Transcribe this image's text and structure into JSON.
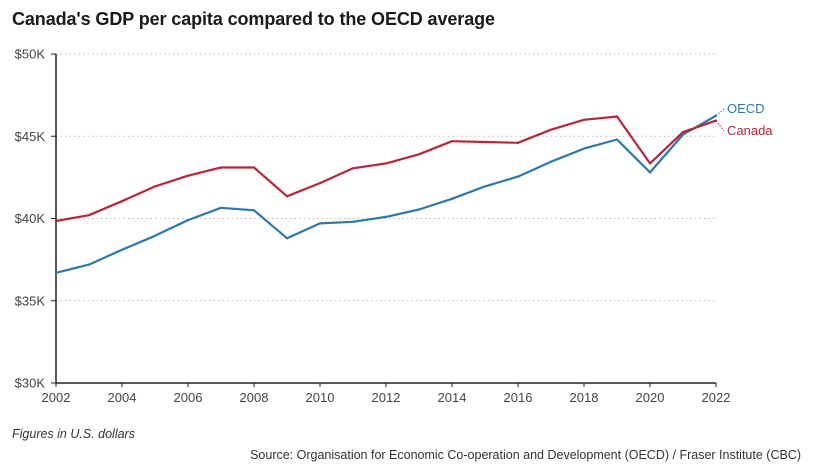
{
  "title": "Canada's GDP per capita compared to the OECD average",
  "note": "Figures in U.S. dollars",
  "source": "Source: Organisation for Economic Co-operation and Development (OECD) / Fraser Institute (CBC)",
  "colors": {
    "oecd": "#2e78a8",
    "canada": "#b5283a",
    "grid": "#bbbbbb",
    "axis": "#222222"
  },
  "chart_data": {
    "type": "line",
    "title": "Canada's GDP per capita compared to the OECD average",
    "xlabel": "",
    "ylabel": "",
    "xlim": [
      2002,
      2022
    ],
    "ylim": [
      30000,
      50000
    ],
    "x_ticks": [
      2002,
      2004,
      2006,
      2008,
      2010,
      2012,
      2014,
      2016,
      2018,
      2020,
      2022
    ],
    "x_tick_labels": [
      "2002",
      "2004",
      "2006",
      "2008",
      "2010",
      "2012",
      "2014",
      "2016",
      "2018",
      "2020",
      "2022"
    ],
    "y_ticks": [
      30000,
      35000,
      40000,
      45000,
      50000
    ],
    "y_tick_labels": [
      "$30K",
      "$35K",
      "$40K",
      "$45K",
      "$50K"
    ],
    "grid": "horizontal-dotted",
    "legend": "direct-labels-right",
    "x": [
      2002,
      2003,
      2004,
      2005,
      2006,
      2007,
      2008,
      2009,
      2010,
      2011,
      2012,
      2013,
      2014,
      2015,
      2016,
      2017,
      2018,
      2019,
      2020,
      2021,
      2022
    ],
    "series": [
      {
        "name": "OECD",
        "color": "#2e78a8",
        "values": [
          36700,
          37200,
          38100,
          38950,
          39900,
          40650,
          40500,
          38800,
          39700,
          39800,
          40100,
          40550,
          41200,
          41950,
          42550,
          43450,
          44250,
          44800,
          42800,
          45100,
          46250
        ]
      },
      {
        "name": "Canada",
        "color": "#b5283a",
        "values": [
          39850,
          40200,
          41050,
          41950,
          42600,
          43100,
          43100,
          41350,
          42150,
          43050,
          43350,
          43900,
          44700,
          44650,
          44600,
          45400,
          46000,
          46200,
          43350,
          45250,
          45950
        ]
      }
    ]
  }
}
